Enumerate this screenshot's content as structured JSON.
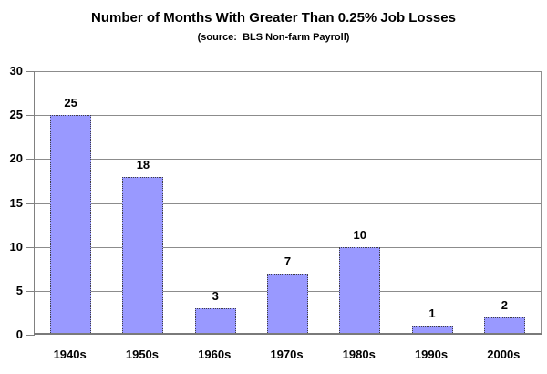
{
  "title": "Number of Months With Greater Than 0.25% Job Losses",
  "subtitle": "(source:  BLS Non-farm Payroll)",
  "chart_data": {
    "type": "bar",
    "title": "Number of Months With Greater Than 0.25% Job Losses",
    "subtitle": "(source:  BLS Non-farm Payroll)",
    "categories": [
      "1940s",
      "1950s",
      "1960s",
      "1970s",
      "1980s",
      "1990s",
      "2000s"
    ],
    "values": [
      25,
      18,
      3,
      7,
      10,
      1,
      2
    ],
    "value_labels_shown": true,
    "xlabel": "",
    "ylabel": "",
    "ylim": [
      0,
      30
    ],
    "ytick_step": 5,
    "ytick_labels": [
      "0",
      "5",
      "10",
      "15",
      "20",
      "25",
      "30"
    ],
    "grid": true,
    "legend_position": "none",
    "colors": {
      "bar_fill": "#9999FF",
      "bar_border": "#404040",
      "gridline": "#8C8C8C",
      "axis": "#808080",
      "text": "#000000",
      "background": "#FFFFFF"
    }
  }
}
